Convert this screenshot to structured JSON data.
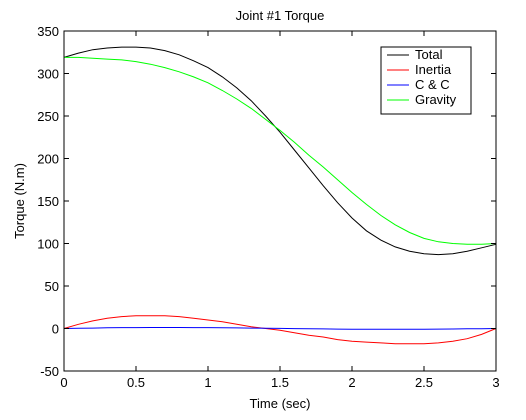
{
  "chart_data": {
    "type": "line",
    "title": "Joint #1 Torque",
    "xlabel": "Time (sec)",
    "ylabel": "Torque (N.m)",
    "xlim": [
      0,
      3
    ],
    "ylim": [
      -50,
      350
    ],
    "xticks": [
      0,
      0.5,
      1,
      1.5,
      2,
      2.5,
      3
    ],
    "yticks": [
      -50,
      0,
      50,
      100,
      150,
      200,
      250,
      300,
      350
    ],
    "xtick_labels": [
      "0",
      "0.5",
      "1",
      "1.5",
      "2",
      "2.5",
      "3"
    ],
    "ytick_labels": [
      "-50",
      "0",
      "50",
      "100",
      "150",
      "200",
      "250",
      "300",
      "350"
    ],
    "grid": false,
    "legend_position": "top-right",
    "x": [
      0,
      0.1,
      0.2,
      0.3,
      0.4,
      0.5,
      0.6,
      0.7,
      0.8,
      0.9,
      1.0,
      1.1,
      1.2,
      1.3,
      1.4,
      1.5,
      1.6,
      1.7,
      1.8,
      1.9,
      2.0,
      2.1,
      2.2,
      2.3,
      2.4,
      2.5,
      2.6,
      2.7,
      2.8,
      2.9,
      3.0
    ],
    "series": [
      {
        "name": "Total",
        "color": "#000000",
        "values": [
          319,
          324,
          328,
          330,
          331,
          331,
          330,
          327,
          322,
          315,
          307,
          296,
          283,
          268,
          250,
          231,
          210,
          189,
          168,
          148,
          130,
          115,
          104,
          96,
          91,
          88,
          87,
          88,
          91,
          95,
          99
        ]
      },
      {
        "name": "Inertia",
        "color": "#ff0000",
        "values": [
          0,
          5,
          9,
          12,
          14,
          15,
          15,
          15,
          14,
          12,
          10,
          8,
          5,
          2,
          0,
          -2,
          -5,
          -8,
          -10,
          -13,
          -15,
          -16,
          -17,
          -18,
          -18,
          -18,
          -17,
          -15,
          -12,
          -7,
          0
        ]
      },
      {
        "name": "C & C",
        "color": "#0000ff",
        "values": [
          0,
          0.2,
          0.5,
          0.8,
          1.0,
          1.1,
          1.2,
          1.2,
          1.2,
          1.1,
          1.0,
          0.9,
          0.7,
          0.5,
          0.3,
          0.1,
          -0.1,
          -0.3,
          -0.5,
          -0.7,
          -0.8,
          -0.9,
          -0.9,
          -0.9,
          -0.9,
          -0.8,
          -0.7,
          -0.6,
          -0.4,
          -0.2,
          0
        ]
      },
      {
        "name": "Gravity",
        "color": "#00ff00",
        "values": [
          319,
          319,
          318,
          317,
          316,
          314,
          311,
          307,
          302,
          296,
          289,
          280,
          270,
          259,
          246,
          233,
          219,
          204,
          190,
          175,
          160,
          146,
          133,
          122,
          113,
          106,
          102,
          100,
          99,
          99,
          100
        ]
      }
    ]
  }
}
